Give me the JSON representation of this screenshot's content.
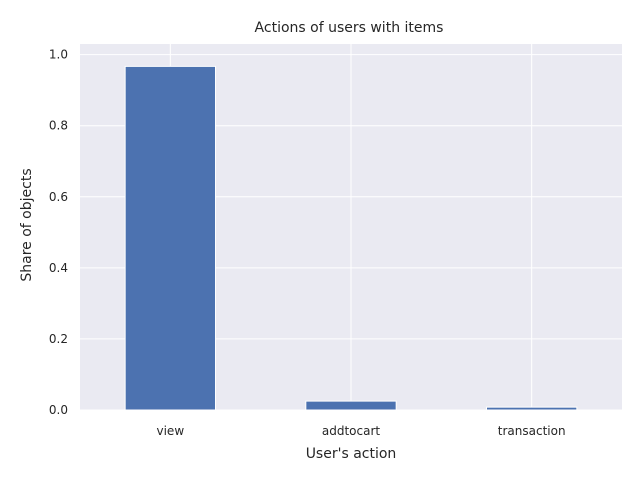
{
  "chart_data": {
    "type": "bar",
    "title": "Actions of users with items",
    "xlabel": "User's action",
    "ylabel": "Share of objects",
    "categories": [
      "view",
      "addtocart",
      "transaction"
    ],
    "values": [
      0.967,
      0.025,
      0.008
    ],
    "ylim": [
      0,
      1.03
    ],
    "yticks": [
      "0.0",
      "0.2",
      "0.4",
      "0.6",
      "0.8",
      "1.0"
    ],
    "grid": true,
    "bar_color": "#4c72b0",
    "background_color": "#eaeaf2",
    "grid_color": "#ffffff"
  }
}
